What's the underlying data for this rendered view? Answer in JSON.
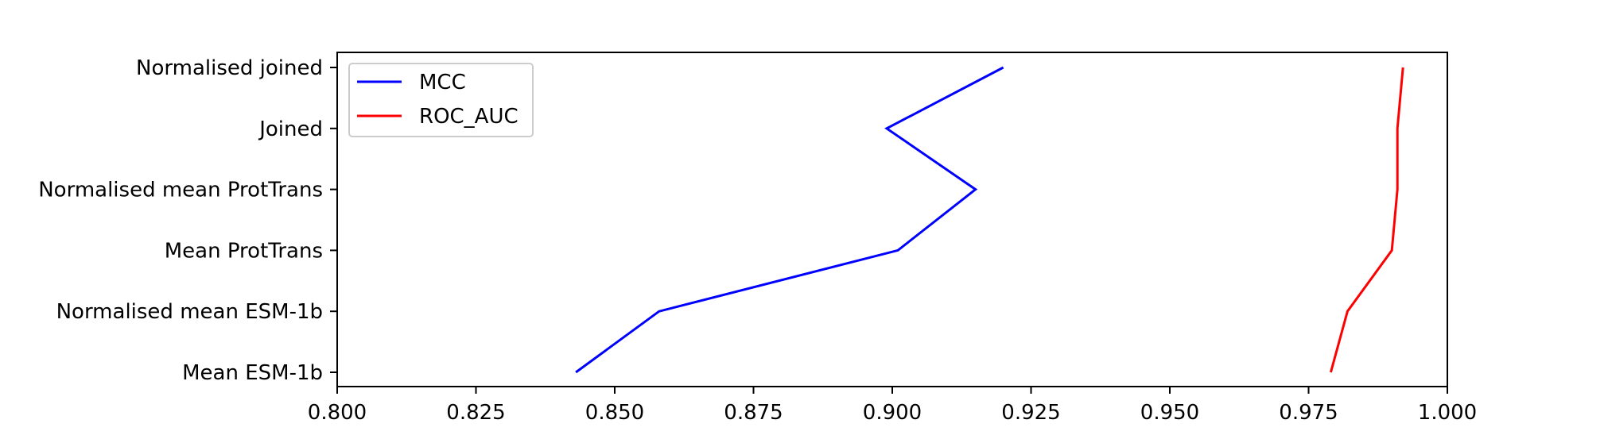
{
  "chart_data": {
    "type": "line",
    "orientation": "horizontal",
    "title": "",
    "xlabel": "",
    "ylabel": "",
    "xlim": [
      0.8,
      1.0
    ],
    "x_ticks": [
      "0.800",
      "0.825",
      "0.850",
      "0.875",
      "0.900",
      "0.925",
      "0.950",
      "0.975",
      "1.000"
    ],
    "x_tick_values": [
      0.8,
      0.825,
      0.85,
      0.875,
      0.9,
      0.925,
      0.95,
      0.975,
      1.0
    ],
    "categories": [
      "Mean ESM-1b",
      "Normalised mean ESM-1b",
      "Mean ProtTrans",
      "Normalised mean ProtTrans",
      "Joined",
      "Normalised joined"
    ],
    "series": [
      {
        "name": "MCC",
        "color": "#0000ff",
        "values": [
          0.843,
          0.858,
          0.901,
          0.915,
          0.899,
          0.92
        ]
      },
      {
        "name": "ROC_AUC",
        "color": "#ff0000",
        "values": [
          0.979,
          0.982,
          0.99,
          0.991,
          0.991,
          0.992
        ]
      }
    ],
    "legend": "top-left",
    "grid": false
  }
}
